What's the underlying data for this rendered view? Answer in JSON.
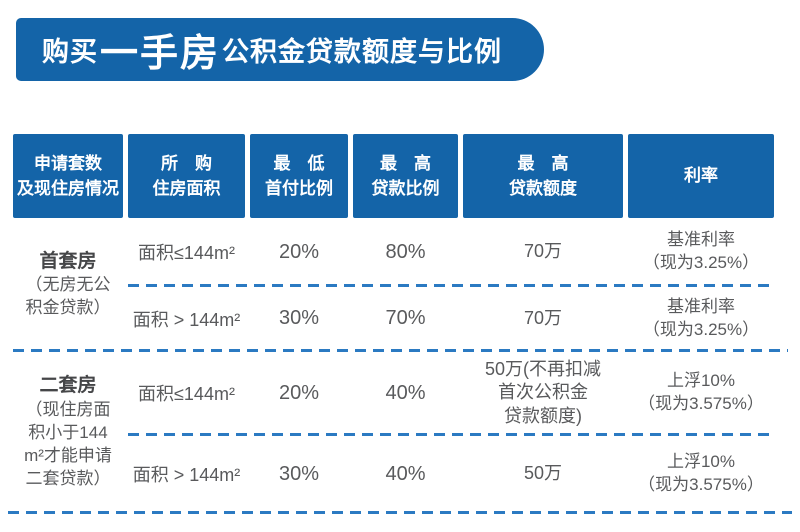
{
  "colors": {
    "primary_blue": "#1464a8",
    "dash_blue": "#2b7ac2",
    "body_text": "#595a5c",
    "header_text": "#ffffff"
  },
  "title": {
    "prefix": "购买",
    "emphasis": "一手房",
    "suffix": "公积金贷款额度与比例"
  },
  "table": {
    "headers": [
      {
        "line1": "申请套数",
        "line2": "及现住房情况"
      },
      {
        "line1": "所　购",
        "line2": "住房面积"
      },
      {
        "line1": "最　低",
        "line2": "首付比例"
      },
      {
        "line1": "最　高",
        "line2": "贷款比例"
      },
      {
        "line1": "最　高",
        "line2": "贷款额度"
      },
      {
        "line1": "利率",
        "line2": ""
      }
    ],
    "groups": [
      {
        "name": "首套房",
        "note": "（无房无公\n积金贷款）"
      },
      {
        "name": "二套房",
        "note": "（现住房面\n积小于144\nm²才能申请\n二套贷款）"
      }
    ],
    "rows": [
      {
        "area": "面积≤144m²",
        "down_payment": "20%",
        "loan_ratio": "80%",
        "loan_limit": "70万",
        "rate": "基准利率\n（现为3.25%）"
      },
      {
        "area": "面积 > 144m²",
        "down_payment": "30%",
        "loan_ratio": "70%",
        "loan_limit": "70万",
        "rate": "基准利率\n（现为3.25%）"
      },
      {
        "area": "面积≤144m²",
        "down_payment": "20%",
        "loan_ratio": "40%",
        "loan_limit": "50万(不再扣减\n首次公积金\n贷款额度)",
        "rate": "上浮10%\n（现为3.575%）"
      },
      {
        "area": "面积 > 144m²",
        "down_payment": "30%",
        "loan_ratio": "40%",
        "loan_limit": "50万",
        "rate": "上浮10%\n（现为3.575%）"
      }
    ]
  }
}
